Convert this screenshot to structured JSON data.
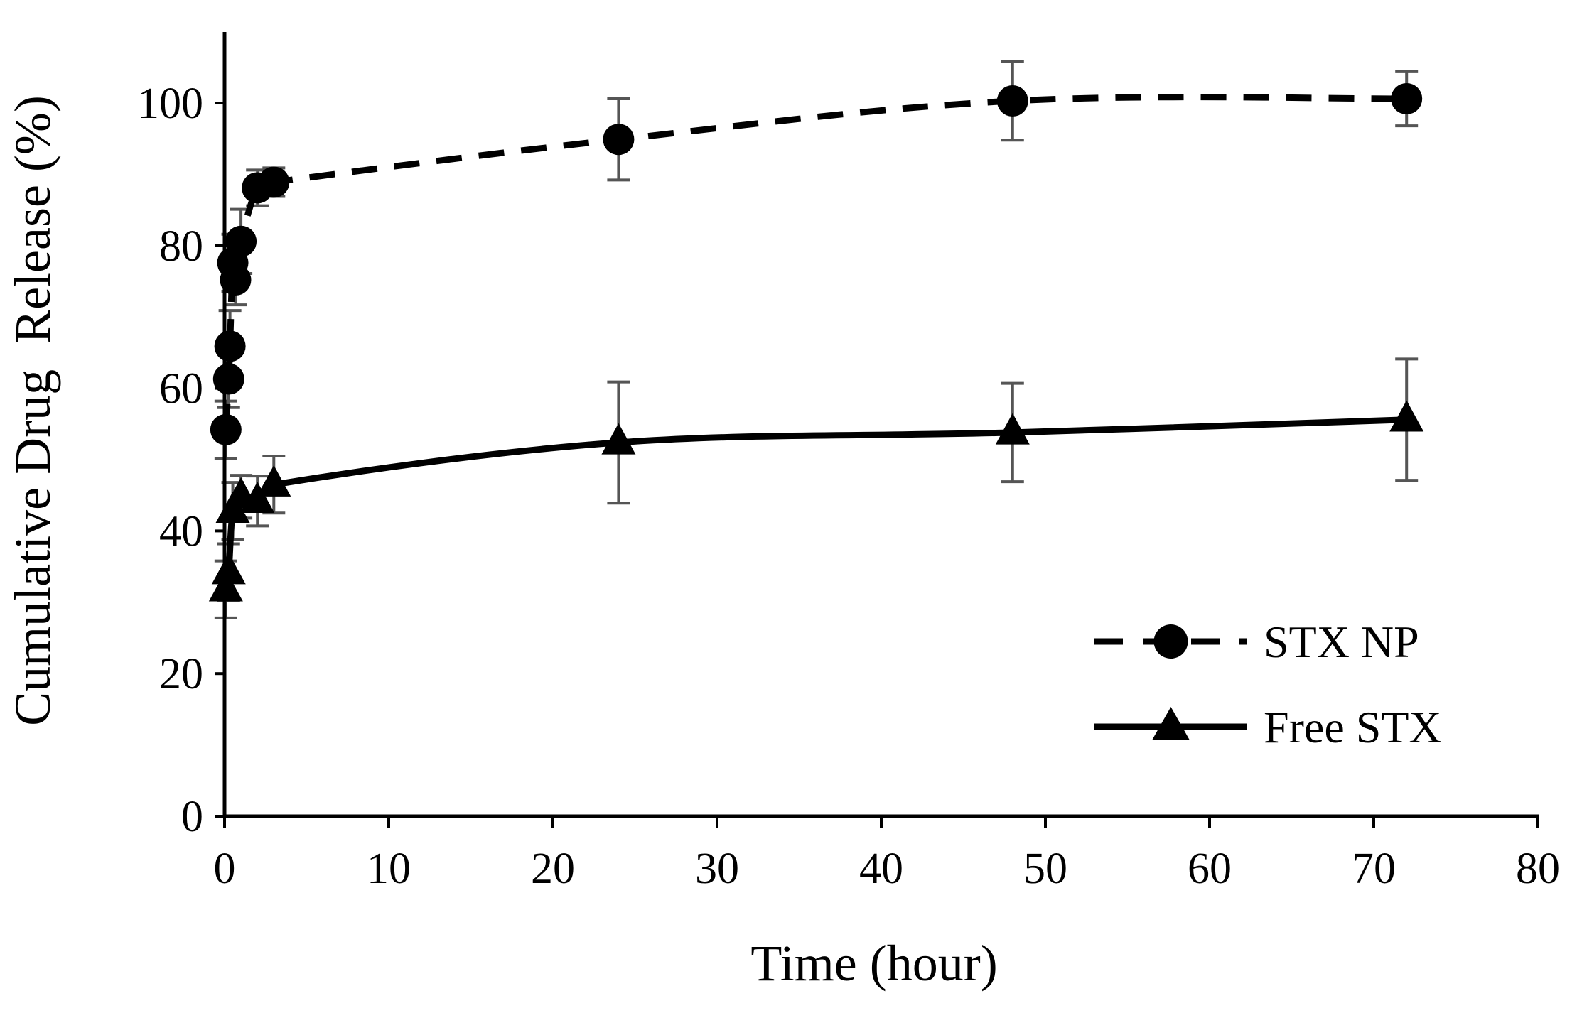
{
  "chart_data": {
    "type": "line",
    "title": "",
    "xlabel": "Time (hour)",
    "ylabel": "Cumulative Drug  Release (%)",
    "xlim": [
      0,
      80
    ],
    "ylim": [
      0,
      110
    ],
    "x_ticks": [
      0,
      10,
      20,
      30,
      40,
      50,
      60,
      70,
      80
    ],
    "y_ticks": [
      0,
      20,
      40,
      60,
      80,
      100
    ],
    "grid": false,
    "legend_position": "bottom-right",
    "series": [
      {
        "name": "STX NP",
        "line_style": "dashed",
        "marker": "circle",
        "color": "#000000",
        "x": [
          0.08,
          0.25,
          0.33,
          0.5,
          0.67,
          1,
          2,
          3,
          24,
          48,
          72
        ],
        "y": [
          54.2,
          61.3,
          65.9,
          77.6,
          75.2,
          80.6,
          88.1,
          88.9,
          94.9,
          100.3,
          100.6
        ],
        "error": [
          4.0,
          4.0,
          5.0,
          4.0,
          3.5,
          4.5,
          2.5,
          2.0,
          5.7,
          5.5,
          3.8
        ]
      },
      {
        "name": "Free STX",
        "line_style": "solid",
        "marker": "triangle",
        "color": "#000000",
        "x": [
          0.08,
          0.25,
          0.5,
          1,
          2,
          3,
          24,
          48,
          72
        ],
        "y": [
          31.8,
          34.2,
          42.8,
          44.8,
          44.2,
          46.5,
          52.4,
          53.8,
          55.6
        ],
        "error": [
          4.0,
          4.0,
          4.0,
          3.0,
          3.5,
          4.0,
          8.5,
          6.9,
          8.5
        ]
      }
    ]
  },
  "colors": {
    "errorbar": "#555555",
    "axis": "#000000"
  }
}
